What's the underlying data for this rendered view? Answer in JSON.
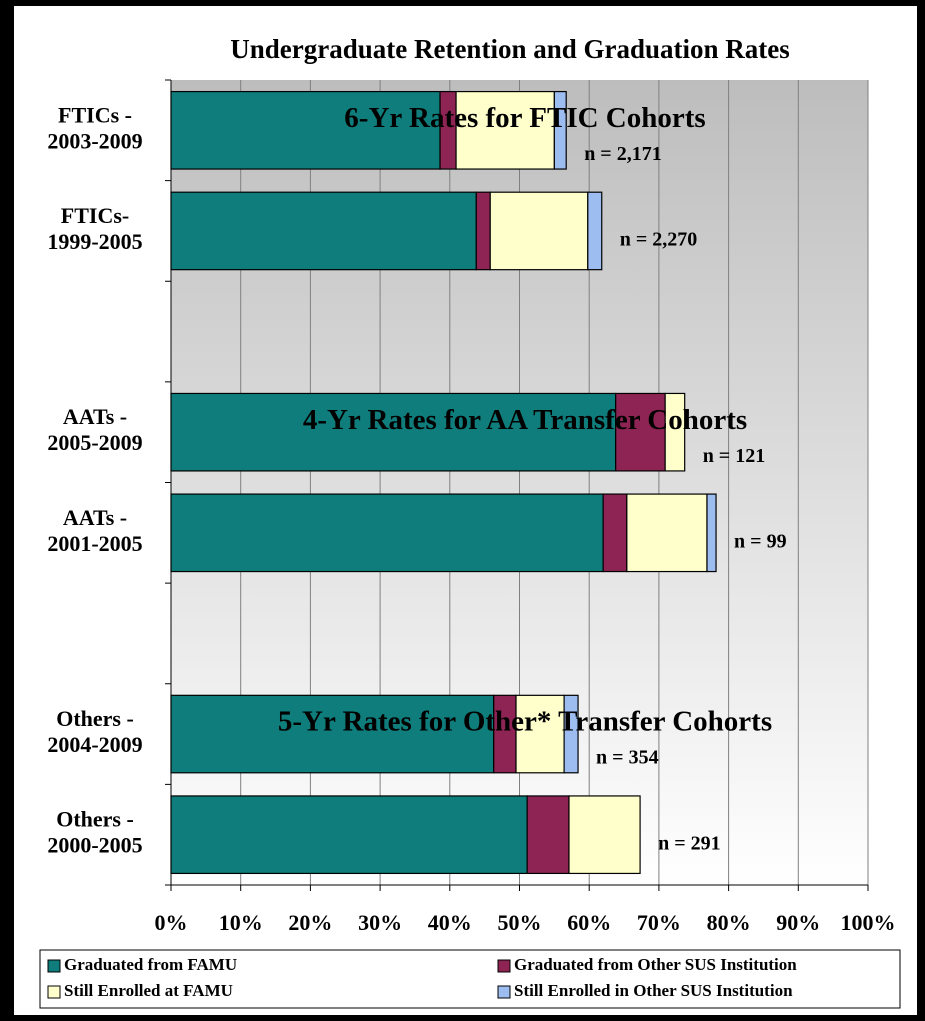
{
  "chart_data": {
    "type": "stacked_barh",
    "title": "Undergraduate Retention and Graduation Rates",
    "categories": [
      "FTICs -\n2003-2009",
      "FTICs-\n1999-2005",
      null,
      "AATs -\n2005-2009",
      "AATs -\n2001-2005",
      null,
      "Others -\n2004-2009",
      "Others -\n2000-2005"
    ],
    "series": [
      {
        "name": "Graduated from FAMU",
        "color": "#0f7d7b",
        "values": [
          38.6,
          43.8,
          null,
          63.8,
          62.0,
          null,
          46.3,
          51.1
        ]
      },
      {
        "name": "Graduated from Other SUS Institution",
        "color": "#8e2454",
        "values": [
          2.3,
          2.0,
          null,
          7.1,
          3.4,
          null,
          3.2,
          6.0
        ]
      },
      {
        "name": "Still Enrolled at FAMU",
        "color": "#ffffcc",
        "values": [
          14.1,
          14.0,
          null,
          2.8,
          11.5,
          null,
          6.9,
          10.2
        ]
      },
      {
        "name": "Still Enrolled in Other SUS Institution",
        "color": "#9dbdf0",
        "values": [
          1.7,
          2.0,
          null,
          0,
          1.3,
          null,
          2.0,
          0
        ]
      }
    ],
    "annotations": [
      "6-Yr Rates for FTIC Cohorts",
      "4-Yr Rates for AA Transfer Cohorts",
      "5-Yr Rates for Other* Transfer Cohorts"
    ],
    "n_labels": [
      "n = 2,171",
      "n = 2,270",
      null,
      "n = 121",
      "n = 99",
      null,
      "n = 354",
      "n = 291"
    ],
    "xlim": [
      0,
      100
    ],
    "xticks": [
      {
        "value": 0,
        "label": "0%"
      },
      {
        "value": 10,
        "label": "10%"
      },
      {
        "value": 20,
        "label": "20%"
      },
      {
        "value": 30,
        "label": "30%"
      },
      {
        "value": 40,
        "label": "40%"
      },
      {
        "value": 50,
        "label": "50%"
      },
      {
        "value": 60,
        "label": "60%"
      },
      {
        "value": 70,
        "label": "70%"
      },
      {
        "value": 80,
        "label": "80%"
      },
      {
        "value": 90,
        "label": "90%"
      },
      {
        "value": 100,
        "label": "100%"
      }
    ],
    "grid": true,
    "legend": "bottom"
  }
}
